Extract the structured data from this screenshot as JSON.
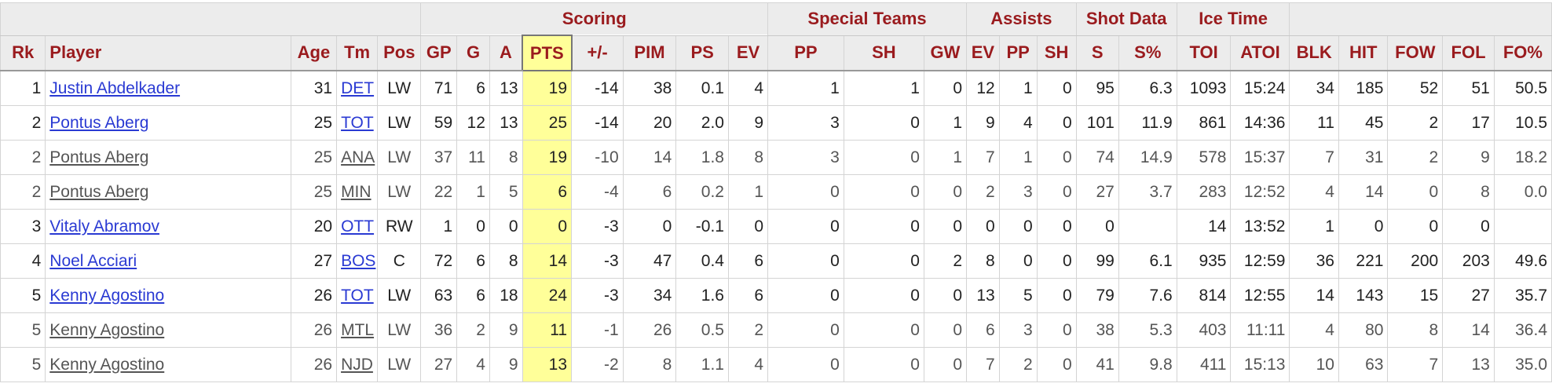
{
  "over_headers": {
    "scoring": "Scoring",
    "special_teams": "Special Teams",
    "assists": "Assists",
    "shot_data": "Shot Data",
    "ice_time": "Ice Time"
  },
  "columns": [
    "Rk",
    "Player",
    "Age",
    "Tm",
    "Pos",
    "GP",
    "G",
    "A",
    "PTS",
    "+/-",
    "PIM",
    "PS",
    "EV",
    "PP",
    "SH",
    "GW",
    "EV",
    "PP",
    "SH",
    "S",
    "S%",
    "TOI",
    "ATOI",
    "BLK",
    "HIT",
    "FOW",
    "FOL",
    "FO%"
  ],
  "rows": [
    {
      "rk": "1",
      "player": "Justin Abdelkader",
      "age": "31",
      "tm": "DET",
      "pos": "LW",
      "gp": "71",
      "g": "6",
      "a": "13",
      "pts": "19",
      "pm": "-14",
      "pim": "38",
      "ps": "0.1",
      "ev": "4",
      "pp": "1",
      "sh": "1",
      "gw": "0",
      "aev": "12",
      "app": "1",
      "ash": "0",
      "s": "95",
      "spct": "6.3",
      "toi": "1093",
      "atoi": "15:24",
      "blk": "34",
      "hit": "185",
      "fow": "52",
      "fol": "51",
      "fopct": "50.5"
    },
    {
      "rk": "2",
      "player": "Pontus Aberg",
      "age": "25",
      "tm": "TOT",
      "pos": "LW",
      "gp": "59",
      "g": "12",
      "a": "13",
      "pts": "25",
      "pm": "-14",
      "pim": "20",
      "ps": "2.0",
      "ev": "9",
      "pp": "3",
      "sh": "0",
      "gw": "1",
      "aev": "9",
      "app": "4",
      "ash": "0",
      "s": "101",
      "spct": "11.9",
      "toi": "861",
      "atoi": "14:36",
      "blk": "11",
      "hit": "45",
      "fow": "2",
      "fol": "17",
      "fopct": "10.5"
    },
    {
      "rk": "2",
      "player": "Pontus Aberg",
      "age": "25",
      "tm": "ANA",
      "pos": "LW",
      "gp": "37",
      "g": "11",
      "a": "8",
      "pts": "19",
      "pm": "-10",
      "pim": "14",
      "ps": "1.8",
      "ev": "8",
      "pp": "3",
      "sh": "0",
      "gw": "1",
      "aev": "7",
      "app": "1",
      "ash": "0",
      "s": "74",
      "spct": "14.9",
      "toi": "578",
      "atoi": "15:37",
      "blk": "7",
      "hit": "31",
      "fow": "2",
      "fol": "9",
      "fopct": "18.2"
    },
    {
      "rk": "2",
      "player": "Pontus Aberg",
      "age": "25",
      "tm": "MIN",
      "pos": "LW",
      "gp": "22",
      "g": "1",
      "a": "5",
      "pts": "6",
      "pm": "-4",
      "pim": "6",
      "ps": "0.2",
      "ev": "1",
      "pp": "0",
      "sh": "0",
      "gw": "0",
      "aev": "2",
      "app": "3",
      "ash": "0",
      "s": "27",
      "spct": "3.7",
      "toi": "283",
      "atoi": "12:52",
      "blk": "4",
      "hit": "14",
      "fow": "0",
      "fol": "8",
      "fopct": "0.0"
    },
    {
      "rk": "3",
      "player": "Vitaly Abramov",
      "age": "20",
      "tm": "OTT",
      "pos": "RW",
      "gp": "1",
      "g": "0",
      "a": "0",
      "pts": "0",
      "pm": "-3",
      "pim": "0",
      "ps": "-0.1",
      "ev": "0",
      "pp": "0",
      "sh": "0",
      "gw": "0",
      "aev": "0",
      "app": "0",
      "ash": "0",
      "s": "0",
      "spct": "",
      "toi": "14",
      "atoi": "13:52",
      "blk": "1",
      "hit": "0",
      "fow": "0",
      "fol": "0",
      "fopct": ""
    },
    {
      "rk": "4",
      "player": "Noel Acciari",
      "age": "27",
      "tm": "BOS",
      "pos": "C",
      "gp": "72",
      "g": "6",
      "a": "8",
      "pts": "14",
      "pm": "-3",
      "pim": "47",
      "ps": "0.4",
      "ev": "6",
      "pp": "0",
      "sh": "0",
      "gw": "2",
      "aev": "8",
      "app": "0",
      "ash": "0",
      "s": "99",
      "spct": "6.1",
      "toi": "935",
      "atoi": "12:59",
      "blk": "36",
      "hit": "221",
      "fow": "200",
      "fol": "203",
      "fopct": "49.6"
    },
    {
      "rk": "5",
      "player": "Kenny Agostino",
      "age": "26",
      "tm": "TOT",
      "pos": "LW",
      "gp": "63",
      "g": "6",
      "a": "18",
      "pts": "24",
      "pm": "-3",
      "pim": "34",
      "ps": "1.6",
      "ev": "6",
      "pp": "0",
      "sh": "0",
      "gw": "0",
      "aev": "13",
      "app": "5",
      "ash": "0",
      "s": "79",
      "spct": "7.6",
      "toi": "814",
      "atoi": "12:55",
      "blk": "14",
      "hit": "143",
      "fow": "15",
      "fol": "27",
      "fopct": "35.7"
    },
    {
      "rk": "5",
      "player": "Kenny Agostino",
      "age": "26",
      "tm": "MTL",
      "pos": "LW",
      "gp": "36",
      "g": "2",
      "a": "9",
      "pts": "11",
      "pm": "-1",
      "pim": "26",
      "ps": "0.5",
      "ev": "2",
      "pp": "0",
      "sh": "0",
      "gw": "0",
      "aev": "6",
      "app": "3",
      "ash": "0",
      "s": "38",
      "spct": "5.3",
      "toi": "403",
      "atoi": "11:11",
      "blk": "4",
      "hit": "80",
      "fow": "8",
      "fol": "14",
      "fopct": "36.4"
    },
    {
      "rk": "5",
      "player": "Kenny Agostino",
      "age": "26",
      "tm": "NJD",
      "pos": "LW",
      "gp": "27",
      "g": "4",
      "a": "9",
      "pts": "13",
      "pm": "-2",
      "pim": "8",
      "ps": "1.1",
      "ev": "4",
      "pp": "0",
      "sh": "0",
      "gw": "0",
      "aev": "7",
      "app": "2",
      "ash": "0",
      "s": "41",
      "spct": "9.8",
      "toi": "411",
      "atoi": "15:13",
      "blk": "10",
      "hit": "63",
      "fow": "7",
      "fol": "13",
      "fopct": "35.0"
    }
  ],
  "row_styles": [
    "main",
    "main",
    "sub",
    "sub",
    "main",
    "main",
    "main",
    "sub",
    "sub"
  ]
}
